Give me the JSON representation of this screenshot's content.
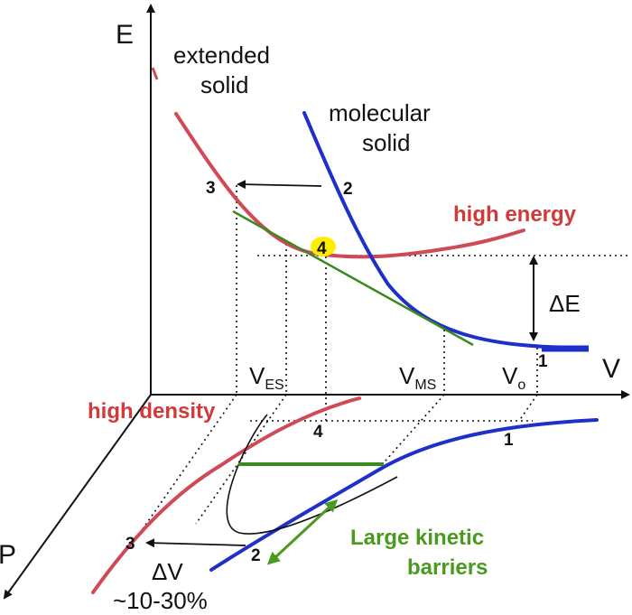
{
  "colors": {
    "extended": "#cf4a55",
    "molecular": "#1f2fc9",
    "tangent": "#3a8a1e",
    "marker": "#ffee00",
    "accent_red": "#d23a3a",
    "accent_green": "#4a9a1e"
  },
  "axes": {
    "energy": "E",
    "volume": "V",
    "pressure": "P"
  },
  "curves": {
    "extended_line1": "extended",
    "extended_line2": "solid",
    "molecular_line1": "molecular",
    "molecular_line2": "solid"
  },
  "annotations": {
    "high_energy": "high energy",
    "high_density": "high density",
    "delta_e": "ΔE",
    "delta_v": "ΔV",
    "delta_v_range": "~10-30%",
    "kinetic_line1": "Large kinetic",
    "kinetic_line2": "barriers"
  },
  "volumes": {
    "v_es_main": "V",
    "v_es_sub": "ES",
    "v_ms_main": "V",
    "v_ms_sub": "MS",
    "v_o_main": "V",
    "v_o_sub": "o"
  },
  "points": {
    "p1_top": "1",
    "p2_top": "2",
    "p3_top": "3",
    "p4_top": "4",
    "p1_bottom": "1",
    "p2_bottom": "2",
    "p3_bottom": "3",
    "p4_bottom": "4"
  }
}
